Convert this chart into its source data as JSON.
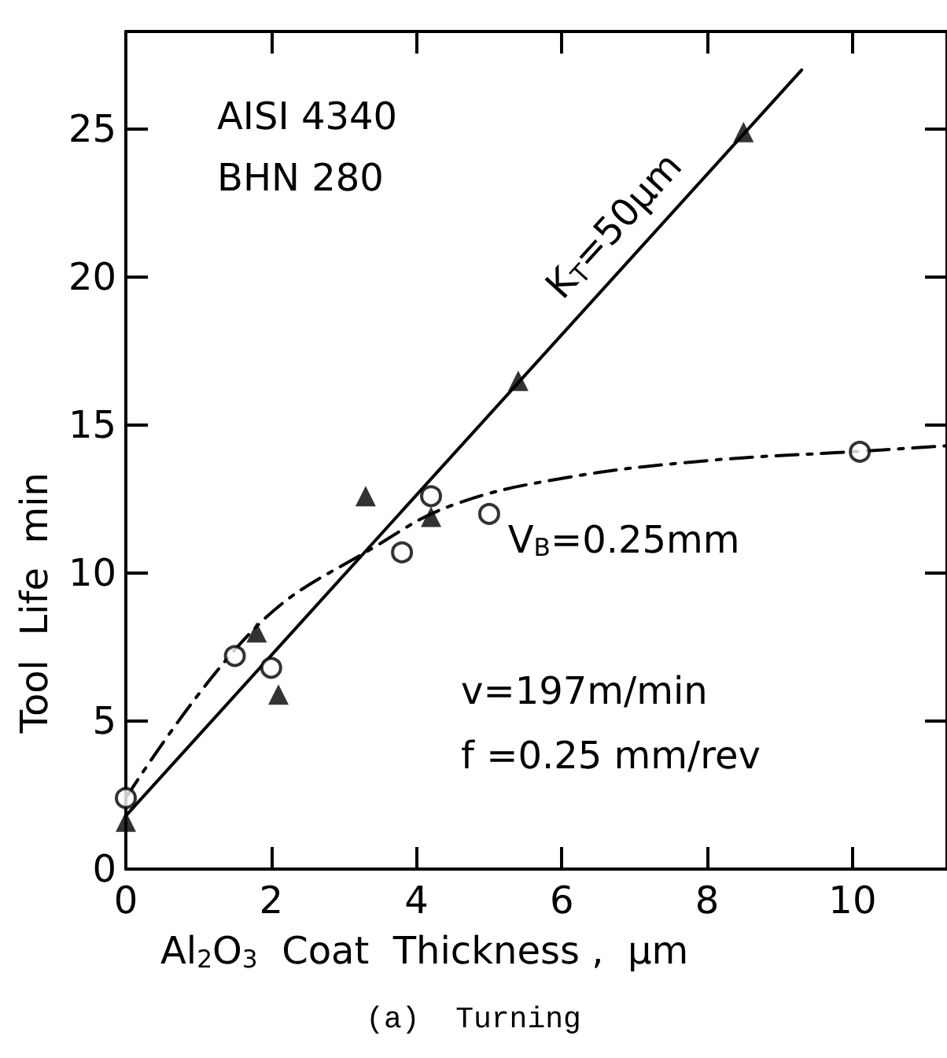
{
  "chart_data": {
    "type": "scatter",
    "title": "(a)  Turning",
    "xlabel": "Al$_{2}$O$_{3}$  Coat  Thickness ,  μm",
    "ylabel": "Tool  Life  min",
    "annotations": [
      "AISI 4340",
      "BHN 280",
      "v=197m/min",
      "f =0.25 mm/rev"
    ],
    "xlim": [
      0,
      11.3
    ],
    "xticks": [
      0,
      2,
      4,
      6,
      8,
      10
    ],
    "ylim": [
      0,
      28.3
    ],
    "yticks": [
      0,
      5,
      10,
      15,
      20,
      25
    ],
    "grid": false,
    "legend": false,
    "series": [
      {
        "marker": "triangle",
        "color": "#000000",
        "x": [
          0,
          1.8,
          2.1,
          3.3,
          4.2,
          5.4,
          8.5
        ],
        "values": [
          1.6,
          8.0,
          5.9,
          12.6,
          11.9,
          16.5,
          24.9
        ]
      },
      {
        "name": "K$_{T}$=50μm",
        "type": "line",
        "line_style": "solid",
        "marker": "none",
        "color": "#000000",
        "x": [
          0,
          9.3
        ],
        "values": [
          1.8,
          27.0
        ]
      },
      {
        "marker": "circle",
        "color": "#000000",
        "x": [
          0,
          1.5,
          2.0,
          3.8,
          4.2,
          5.0,
          10.1
        ],
        "values": [
          2.4,
          7.2,
          6.8,
          10.7,
          12.6,
          12.0,
          14.1
        ]
      },
      {
        "name": "V$_{B}$=0.25mm",
        "type": "line",
        "line_style": "dashed",
        "marker": "none",
        "color": "#000000",
        "x": [
          0,
          1.8,
          3.5,
          4.5,
          6,
          8,
          10,
          11.3
        ],
        "values": [
          2.4,
          8.2,
          11.0,
          12.3,
          13.2,
          13.8,
          14.1,
          14.3
        ]
      }
    ]
  }
}
